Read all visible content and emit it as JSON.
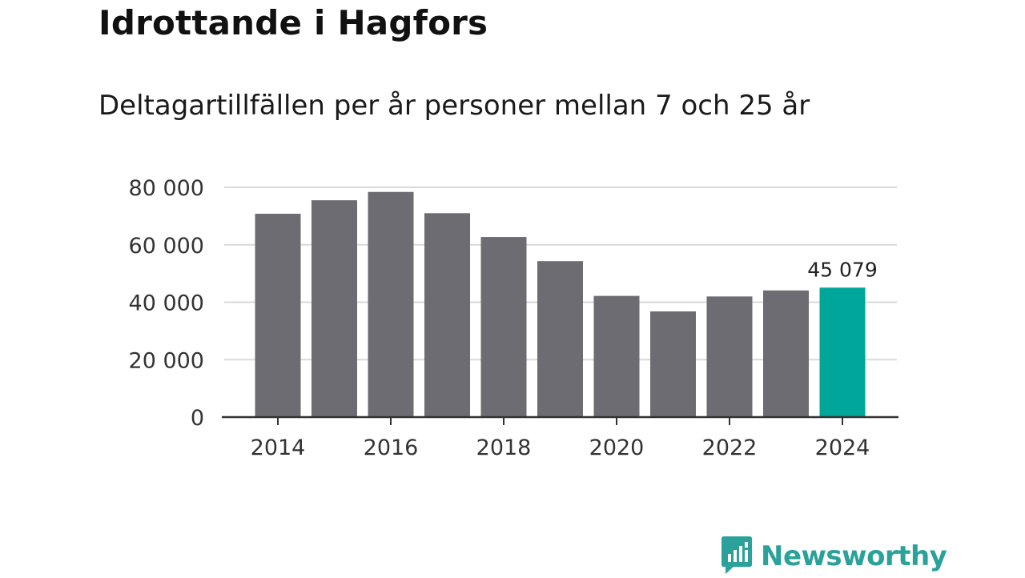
{
  "title": "Idrottande i Hagfors",
  "subtitle": "Deltagartillfällen per år personer mellan 7 och 25 år",
  "brand": {
    "name": "Newsworthy",
    "color": "#2aa19a",
    "icon": "chart-speech-bubble-icon"
  },
  "colors": {
    "bar": "#6d6c73",
    "highlight": "#00a69a",
    "grid": "#d9d9d9",
    "axis": "#333333"
  },
  "chart_data": {
    "type": "bar",
    "categories": [
      "2014",
      "2015",
      "2016",
      "2017",
      "2018",
      "2019",
      "2020",
      "2021",
      "2022",
      "2023",
      "2024"
    ],
    "values": [
      70800,
      75500,
      78400,
      71000,
      62700,
      54300,
      42200,
      36800,
      42000,
      44100,
      45079
    ],
    "highlight_index": 10,
    "data_labels": [
      {
        "index": 10,
        "text": "45 079"
      }
    ],
    "x_tick_labels": [
      "2014",
      "2016",
      "2018",
      "2020",
      "2022",
      "2024"
    ],
    "y_ticks": [
      0,
      20000,
      40000,
      60000,
      80000
    ],
    "y_tick_labels": [
      "0",
      "20 000",
      "40 000",
      "60 000",
      "80 000"
    ],
    "ylim": [
      0,
      80000
    ],
    "grid": true,
    "xlabel": "",
    "ylabel": ""
  }
}
